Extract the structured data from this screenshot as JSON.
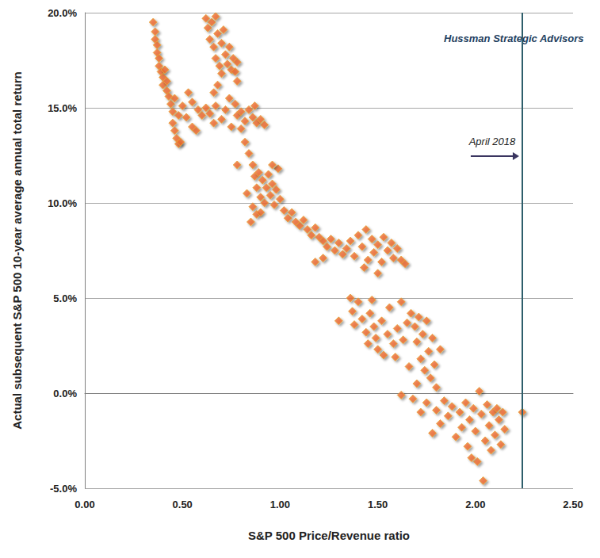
{
  "chart_data": {
    "type": "scatter",
    "x_label": "S&P 500 Price/Revenue ratio",
    "y_label": "Actual subsequent S&P 500 10-year average annual total return",
    "annotations": [
      {
        "text": "Hussman Strategic Advisors"
      },
      {
        "text": "April 2018",
        "x": 2.24
      }
    ],
    "x": [
      0.35,
      0.36,
      0.36,
      0.37,
      0.37,
      0.38,
      0.38,
      0.39,
      0.4,
      0.4,
      0.41,
      0.42,
      0.42,
      0.43,
      0.44,
      0.45,
      0.45,
      0.46,
      0.47,
      0.48,
      0.49,
      0.46,
      0.48,
      0.5,
      0.52,
      0.53,
      0.55,
      0.55,
      0.57,
      0.58,
      0.6,
      0.62,
      0.64,
      0.66,
      0.67,
      0.7,
      0.72,
      0.74,
      0.75,
      0.77,
      0.78,
      0.8,
      0.82,
      0.84,
      0.86,
      0.88,
      0.9,
      0.92,
      0.87,
      0.8,
      0.78,
      0.62,
      0.63,
      0.64,
      0.65,
      0.66,
      0.67,
      0.67,
      0.68,
      0.69,
      0.7,
      0.71,
      0.72,
      0.73,
      0.74,
      0.75,
      0.76,
      0.77,
      0.78,
      0.78,
      0.7,
      0.68,
      0.66,
      0.82,
      0.84,
      0.86,
      0.87,
      0.88,
      0.89,
      0.9,
      0.91,
      0.92,
      0.93,
      0.94,
      0.95,
      0.96,
      0.97,
      0.98,
      1.0,
      0.86,
      0.88,
      0.85,
      0.9,
      0.83,
      0.99,
      0.96,
      1.02,
      1.04,
      1.06,
      1.08,
      1.1,
      1.12,
      1.14,
      1.16,
      1.18,
      1.2,
      1.22,
      1.24,
      1.26,
      1.28,
      1.3,
      1.32,
      1.18,
      1.22,
      1.3,
      1.34,
      1.36,
      1.38,
      1.4,
      1.42,
      1.44,
      1.45,
      1.47,
      1.48,
      1.5,
      1.52,
      1.53,
      1.55,
      1.57,
      1.58,
      1.6,
      1.62,
      1.64,
      1.43,
      1.5,
      1.36,
      1.37,
      1.38,
      1.4,
      1.42,
      1.44,
      1.45,
      1.46,
      1.48,
      1.49,
      1.5,
      1.52,
      1.53,
      1.55,
      1.56,
      1.58,
      1.6,
      1.62,
      1.63,
      1.65,
      1.59,
      1.47,
      1.67,
      1.69,
      1.7,
      1.71,
      1.72,
      1.73,
      1.74,
      1.75,
      1.76,
      1.77,
      1.78,
      1.79,
      1.8,
      1.82,
      1.66,
      1.7,
      1.68,
      1.62,
      1.72,
      1.75,
      1.78,
      1.8,
      1.82,
      1.84,
      1.86,
      1.88,
      1.9,
      1.92,
      1.93,
      1.95,
      1.96,
      1.97,
      1.98,
      1.99,
      2.0,
      2.01,
      2.02,
      2.03,
      2.04,
      2.05,
      2.06,
      2.07,
      2.08,
      2.09,
      2.1,
      2.11,
      2.12,
      2.13,
      2.14,
      2.15,
      2.24
    ],
    "values": [
      19.5,
      19.0,
      18.6,
      18.3,
      17.9,
      17.6,
      17.2,
      16.9,
      16.6,
      16.2,
      17.0,
      16.4,
      15.9,
      15.6,
      15.2,
      14.8,
      14.2,
      13.8,
      13.4,
      13.1,
      13.2,
      15.5,
      14.6,
      15.1,
      14.5,
      15.8,
      15.3,
      14.0,
      13.8,
      14.9,
      14.6,
      15.0,
      14.7,
      14.2,
      15.1,
      14.4,
      14.9,
      15.5,
      14.0,
      15.2,
      14.6,
      14.8,
      14.3,
      14.9,
      14.5,
      14.2,
      14.4,
      14.1,
      15.1,
      13.9,
      12.0,
      19.7,
      19.2,
      18.6,
      19.5,
      18.2,
      19.8,
      17.6,
      18.9,
      17.2,
      18.4,
      19.1,
      17.8,
      17.3,
      18.2,
      17.0,
      17.6,
      16.9,
      17.4,
      16.4,
      16.8,
      16.2,
      15.8,
      13.2,
      12.6,
      12.0,
      11.4,
      10.8,
      11.6,
      10.3,
      11.2,
      10.0,
      10.8,
      11.5,
      10.4,
      11.0,
      9.9,
      10.7,
      10.2,
      9.8,
      9.4,
      9.0,
      9.5,
      10.5,
      11.8,
      12.0,
      9.6,
      9.2,
      9.5,
      9.0,
      8.8,
      9.1,
      8.6,
      8.3,
      8.7,
      8.2,
      8.0,
      7.7,
      8.1,
      7.5,
      7.9,
      7.3,
      6.9,
      7.1,
      3.8,
      7.6,
      8.0,
      7.2,
      8.3,
      7.7,
      8.6,
      7.0,
      8.1,
      7.4,
      7.8,
      6.9,
      8.2,
      7.5,
      7.9,
      7.1,
      7.6,
      7.0,
      6.8,
      6.6,
      6.3,
      5.0,
      4.3,
      3.6,
      4.8,
      3.9,
      3.2,
      2.6,
      4.2,
      3.5,
      2.9,
      2.3,
      3.8,
      2.0,
      3.1,
      4.5,
      2.6,
      3.4,
      4.8,
      2.8,
      3.7,
      1.9,
      4.9,
      4.2,
      3.5,
      2.7,
      4.0,
      1.8,
      3.1,
      1.2,
      3.8,
      2.2,
      0.8,
      2.9,
      1.5,
      0.3,
      2.3,
      1.4,
      0.5,
      -0.3,
      -0.1,
      -1.0,
      -0.5,
      -2.1,
      -0.9,
      -1.6,
      -0.4,
      -1.2,
      -0.7,
      -2.3,
      -1.0,
      -1.8,
      -0.5,
      -2.8,
      -1.4,
      -3.4,
      -0.8,
      -2.0,
      -3.6,
      0.1,
      -1.1,
      -4.6,
      -2.5,
      -0.6,
      -1.7,
      -3.0,
      -1.0,
      -2.2,
      -0.8,
      -1.4,
      -2.7,
      -1.0,
      -1.9,
      -1.0
    ],
    "color": "#ee6b2f",
    "marker": "diamond",
    "xlim": [
      0,
      2.5
    ],
    "xticks": [
      {
        "value": 0,
        "label": "0.00"
      },
      {
        "value": 0.5,
        "label": "0.50"
      },
      {
        "value": 1,
        "label": "1.00"
      },
      {
        "value": 1.5,
        "label": "1.50"
      },
      {
        "value": 2,
        "label": "2.00"
      },
      {
        "value": 2.5,
        "label": "2.50"
      }
    ],
    "ylim": [
      -5,
      20
    ],
    "yticks": [
      {
        "value": -5,
        "label": "-5.0%"
      },
      {
        "value": 0,
        "label": "0.0%"
      },
      {
        "value": 5,
        "label": "5.0%"
      },
      {
        "value": 10,
        "label": "10.0%"
      },
      {
        "value": 15,
        "label": "15.0%"
      },
      {
        "value": 20,
        "label": "20.0%"
      }
    ],
    "grid": true
  }
}
